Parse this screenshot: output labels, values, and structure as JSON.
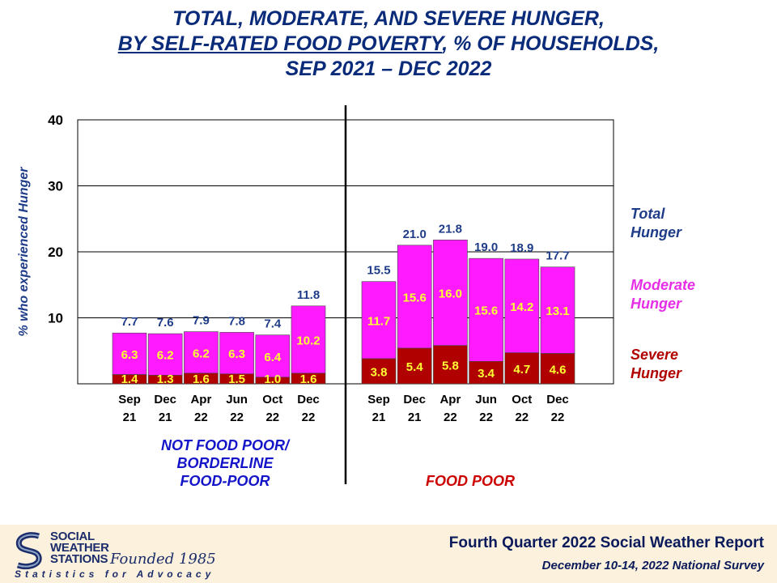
{
  "title": {
    "line1": "TOTAL, MODERATE, AND SEVERE HUNGER,",
    "line2_underlined": "BY SELF-RATED FOOD POVERTY",
    "line2_rest": ", % OF HOUSEHOLDS,",
    "line3": "SEP 2021 – DEC 2022"
  },
  "footer": {
    "logo_line1": "SOCIAL",
    "logo_line2": "WEATHER",
    "logo_line3": "STATIONS",
    "founded": "Founded 1985",
    "tagline": "Statistics for Advocacy",
    "report_title": "Fourth Quarter 2022 Social Weather Report",
    "report_subtitle": "December 10-14, 2022 National Survey"
  },
  "chart_data": {
    "type": "bar",
    "stacked": true,
    "ylabel": "% who experienced Hunger",
    "ylim": [
      0,
      40
    ],
    "yticks": [
      10,
      20,
      30,
      40
    ],
    "grid": true,
    "colors": {
      "severe": "#b00000",
      "moderate": "#ff1aff",
      "total_label": "#1f3c88",
      "label_yellow": "#ffff33",
      "group_label": "#1414c8",
      "food_poor_label": "#cc0000"
    },
    "legend": [
      {
        "key": "total",
        "line1": "Total",
        "line2": "Hunger",
        "color": "#1f3c88"
      },
      {
        "key": "moderate",
        "line1": "Moderate",
        "line2": "Hunger",
        "color": "#e62ee6"
      },
      {
        "key": "severe",
        "line1": "Severe",
        "line2": "Hunger",
        "color": "#b00000"
      }
    ],
    "groups": [
      {
        "label_lines": [
          "NOT FOOD POOR/",
          "BORDERLINE",
          "FOOD-POOR"
        ],
        "label_color": "#1414c8",
        "categories": [
          [
            "Sep",
            "21"
          ],
          [
            "Dec",
            "21"
          ],
          [
            "Apr",
            "22"
          ],
          [
            "Jun",
            "22"
          ],
          [
            "Oct",
            "22"
          ],
          [
            "Dec",
            "22"
          ]
        ],
        "severe": [
          1.4,
          1.3,
          1.6,
          1.5,
          1.0,
          1.6
        ],
        "moderate": [
          6.3,
          6.2,
          6.2,
          6.3,
          6.4,
          10.2
        ],
        "total": [
          7.7,
          7.6,
          7.9,
          7.8,
          7.4,
          11.8
        ]
      },
      {
        "label_lines": [
          "FOOD POOR"
        ],
        "label_color": "#cc0000",
        "categories": [
          [
            "Sep",
            "21"
          ],
          [
            "Dec",
            "21"
          ],
          [
            "Apr",
            "22"
          ],
          [
            "Jun",
            "22"
          ],
          [
            "Oct",
            "22"
          ],
          [
            "Dec",
            "22"
          ]
        ],
        "severe": [
          3.8,
          5.4,
          5.8,
          3.4,
          4.7,
          4.6
        ],
        "moderate": [
          11.7,
          15.6,
          16.0,
          15.6,
          14.2,
          13.1
        ],
        "total": [
          15.5,
          21.0,
          21.8,
          19.0,
          18.9,
          17.7
        ]
      }
    ]
  }
}
